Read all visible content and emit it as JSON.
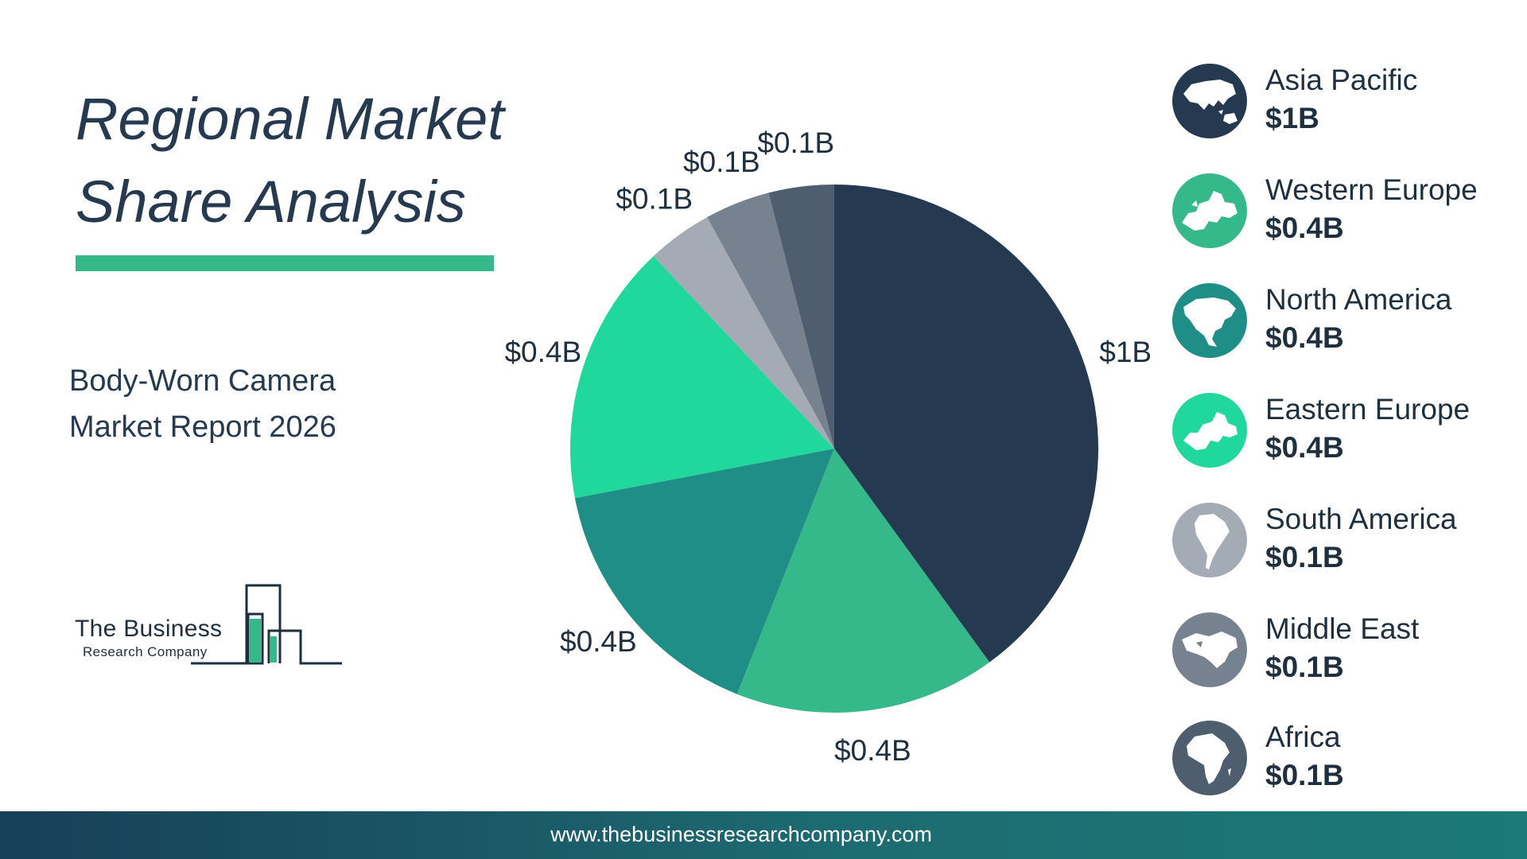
{
  "header": {
    "title_line1": "Regional Market",
    "title_line2": "Share Analysis",
    "accent_color": "#36b98a"
  },
  "subtitle": {
    "line1": "Body-Worn Camera",
    "line2": "Market Report 2026"
  },
  "logo": {
    "name": "The Business",
    "tagline": "Research Company"
  },
  "chart_data": {
    "type": "pie",
    "title": "",
    "slices": [
      {
        "label": "Asia Pacific",
        "value": 1.0,
        "display": "$1B",
        "color": "#253a50"
      },
      {
        "label": "Western Europe",
        "value": 0.4,
        "display": "$0.4B",
        "color": "#36b98a"
      },
      {
        "label": "North America",
        "value": 0.4,
        "display": "$0.4B",
        "color": "#1e8e86"
      },
      {
        "label": "Eastern Europe",
        "value": 0.4,
        "display": "$0.4B",
        "color": "#20d89c"
      },
      {
        "label": "South America",
        "value": 0.1,
        "display": "$0.1B",
        "color": "#a5abb4"
      },
      {
        "label": "Middle East",
        "value": 0.1,
        "display": "$0.1B",
        "color": "#76828f"
      },
      {
        "label": "Africa",
        "value": 0.1,
        "display": "$0.1B",
        "color": "#4f5e6e"
      }
    ],
    "unit": "USD billions",
    "legend_position": "right"
  },
  "legend": {
    "items": [
      {
        "name": "Asia Pacific",
        "value": "$1B",
        "color": "#253a50",
        "icon": "asia-pacific-map-icon"
      },
      {
        "name": "Western Europe",
        "value": "$0.4B",
        "color": "#36b98a",
        "icon": "western-europe-map-icon"
      },
      {
        "name": "North America",
        "value": "$0.4B",
        "color": "#1e8e86",
        "icon": "north-america-map-icon"
      },
      {
        "name": "Eastern Europe",
        "value": "$0.4B",
        "color": "#20d89c",
        "icon": "eastern-europe-map-icon"
      },
      {
        "name": "South America",
        "value": "$0.1B",
        "color": "#a5abb4",
        "icon": "south-america-map-icon"
      },
      {
        "name": "Middle East",
        "value": "$0.1B",
        "color": "#76828f",
        "icon": "middle-east-map-icon"
      },
      {
        "name": "Africa",
        "value": "$0.1B",
        "color": "#4f5e6e",
        "icon": "africa-map-icon"
      }
    ]
  },
  "footer": {
    "url": "www.thebusinessresearchcompany.com"
  }
}
